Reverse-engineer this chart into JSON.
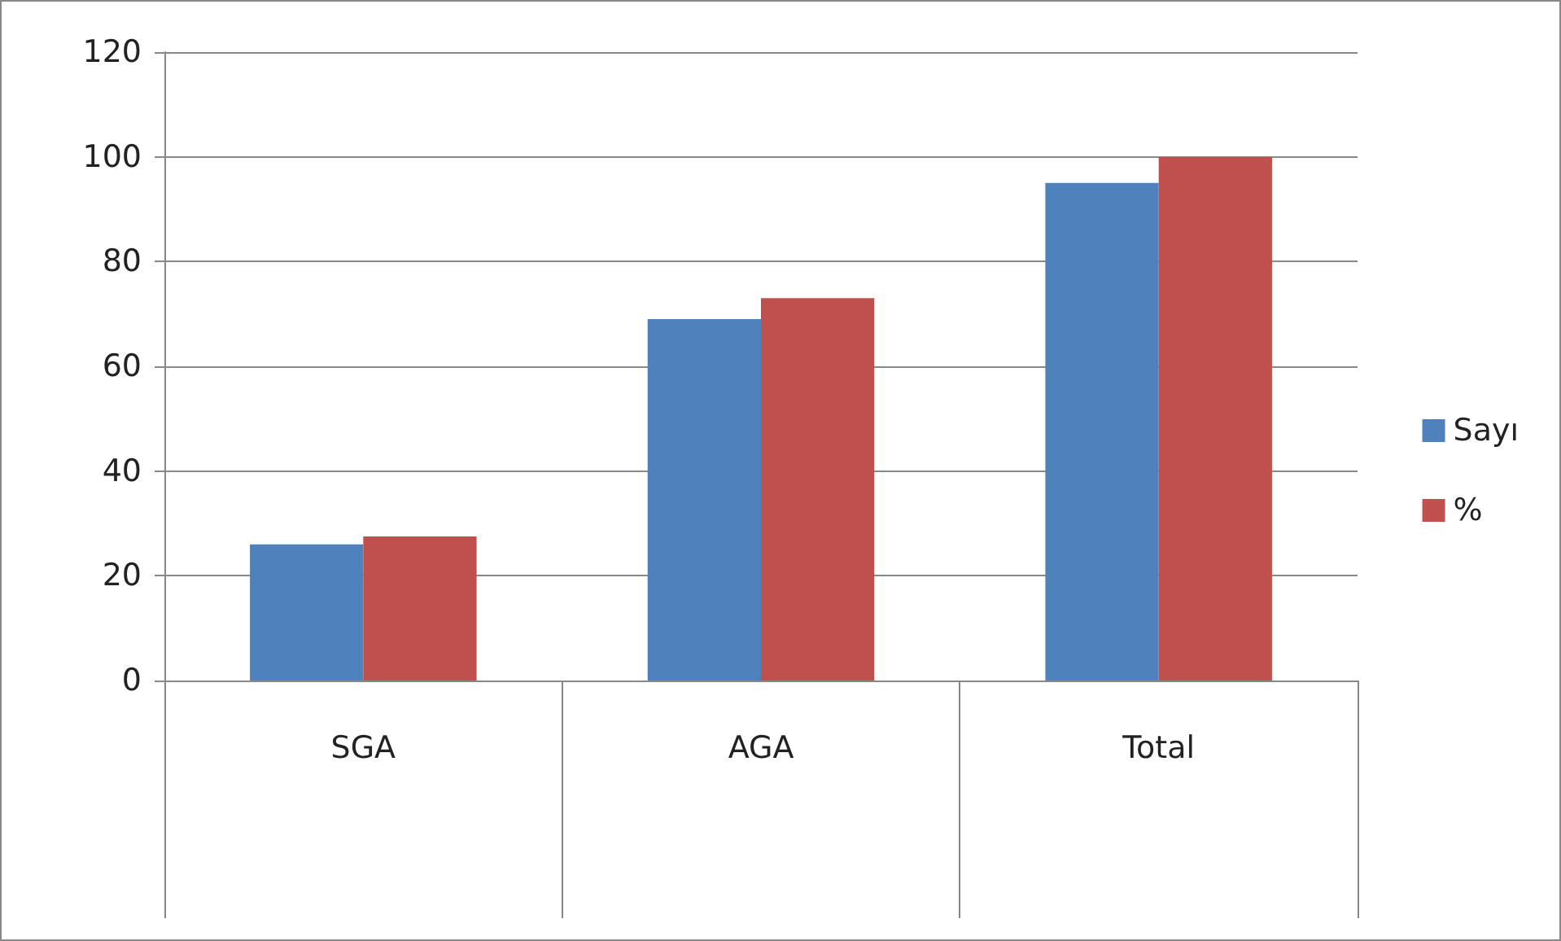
{
  "chart_data": {
    "type": "bar",
    "categories": [
      "SGA",
      "AGA",
      "Total"
    ],
    "series": [
      {
        "name": "Sayı",
        "color": "#4f81bd",
        "values": [
          26,
          69,
          95
        ]
      },
      {
        "name": "%",
        "color": "#c0504d",
        "values": [
          27.5,
          73,
          100
        ]
      }
    ],
    "ylim": [
      0,
      120
    ],
    "yticks": [
      0,
      20,
      40,
      60,
      80,
      100,
      120
    ],
    "grid": "y",
    "legend": "right"
  }
}
